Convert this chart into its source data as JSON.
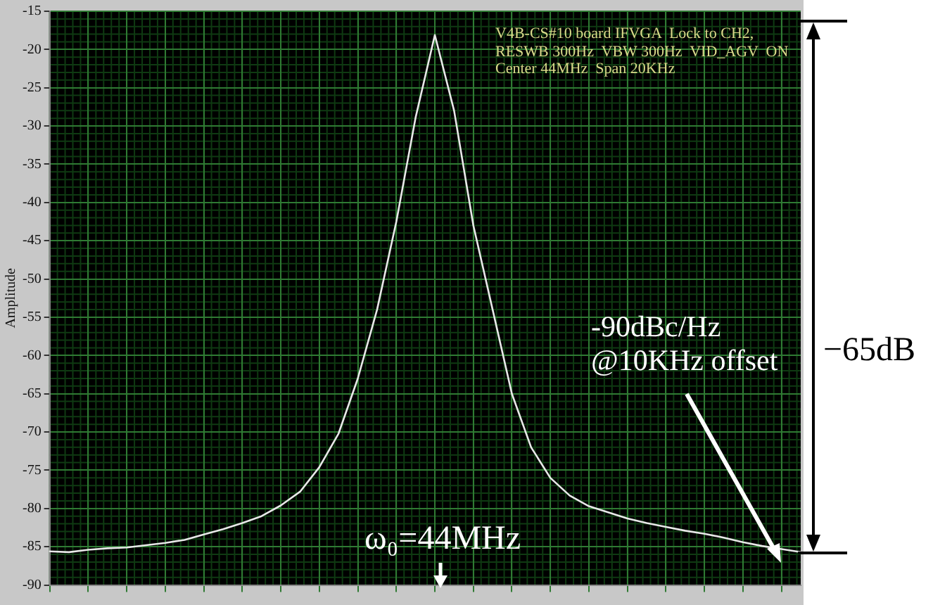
{
  "chart_data": {
    "type": "line",
    "ylabel": "Amplitude",
    "categories": [
      null,
      null,
      null,
      null,
      null,
      null,
      null,
      null,
      null,
      null,
      null,
      null,
      null,
      null,
      null,
      null,
      null,
      null,
      null,
      null,
      null,
      null,
      null,
      null,
      null,
      null,
      null,
      null,
      null,
      null,
      null,
      null,
      null,
      null,
      null,
      null,
      null,
      null,
      null,
      null
    ],
    "series": [
      {
        "color": "#e8e8e8",
        "values": [
          -85.6,
          -85.7,
          -85.4,
          -85.2,
          -85.1,
          -84.8,
          -84.5,
          -84.1,
          -83.4,
          -82.7,
          -81.9,
          -81.0,
          -79.6,
          -77.8,
          -74.6,
          -70.2,
          -63.0,
          -54.0,
          -42.5,
          -28.9,
          -18.1,
          -28.0,
          -43.0,
          -54.0,
          -65.0,
          -72.0,
          -76.0,
          -78.3,
          -79.7,
          -80.5,
          -81.3,
          -81.9,
          -82.4,
          -82.9,
          -83.3,
          -83.8,
          -84.4,
          -84.9,
          -85.3,
          -85.7
        ]
      }
    ],
    "ylim": [
      -90,
      -15
    ],
    "yticks": [
      -15,
      -20,
      -25,
      -30,
      -35,
      -40,
      -45,
      -50,
      -55,
      -60,
      -65,
      -70,
      -75,
      -80,
      -85,
      -90
    ],
    "grid": true,
    "legend": false,
    "marker": "none",
    "line_style": "solid",
    "annotations": [
      "V4B-CS#10 board IFVGA  Lock to CH2,\nRESWB 300Hz  VBW 300Hz  VID_AGV  ON\nCenter 44MHz  Span 20KHz",
      "ω₀=44MHz",
      "-90dBc/Hz\n@10KHz offset",
      "−65dB"
    ]
  }
}
